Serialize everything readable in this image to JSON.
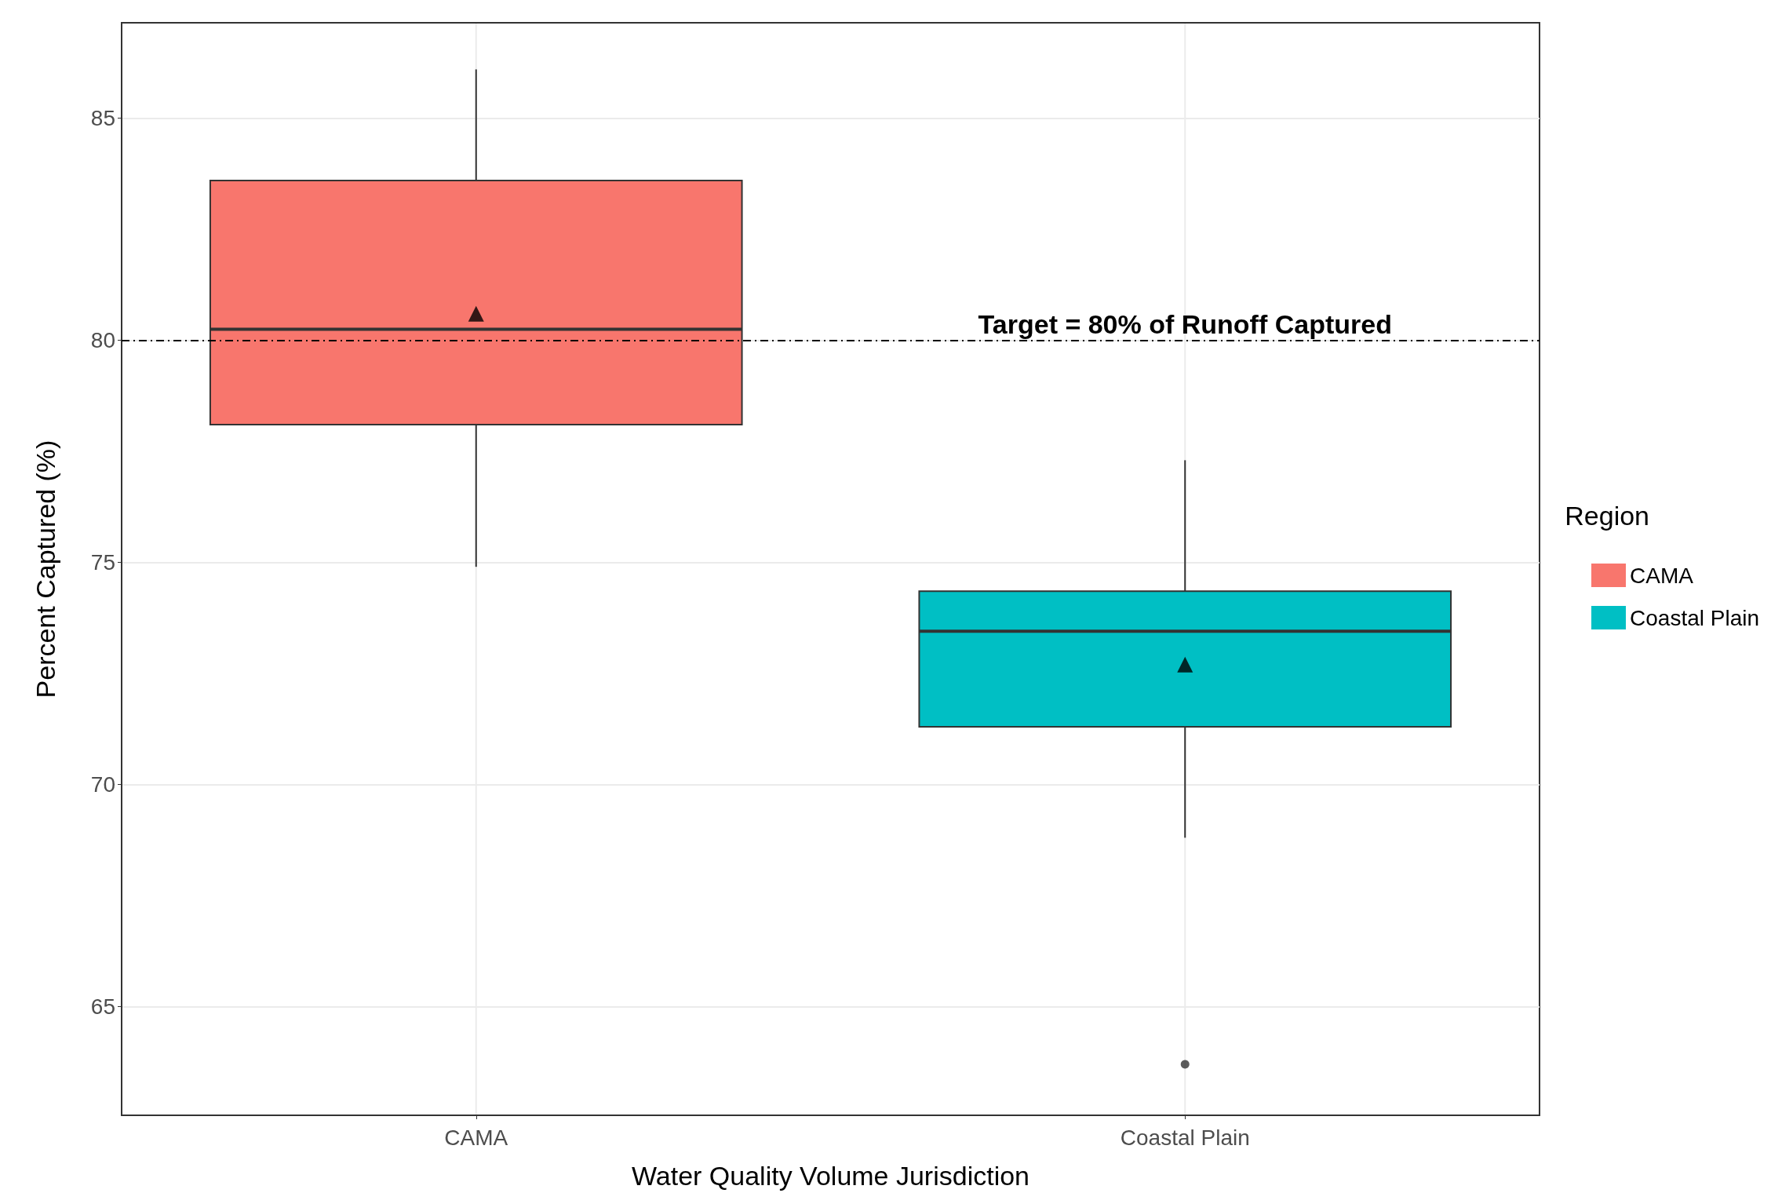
{
  "chart_data": {
    "type": "box",
    "xlabel": "Water Quality Volume Jurisdiction",
    "ylabel": "Percent Captured (%)",
    "legend_title": "Region",
    "categories": [
      "CAMA",
      "Coastal Plain"
    ],
    "series": [
      {
        "name": "CAMA",
        "color": "#f8766d",
        "boxes": [
          {
            "low": 74.9,
            "q1": 78.1,
            "median": 80.25,
            "q3": 83.6,
            "high": 86.1,
            "mean": 80.6
          },
          null
        ]
      },
      {
        "name": "Coastal Plain",
        "color": "#00bfc4",
        "boxes": [
          null,
          {
            "low": 68.8,
            "q1": 71.3,
            "median": 73.45,
            "q3": 74.35,
            "high": 77.3,
            "mean": 72.7,
            "outliers": [
              63.7
            ]
          }
        ]
      }
    ],
    "ylim": [
      62.55,
      87.15
    ],
    "yticks": [
      65,
      70,
      75,
      80,
      85
    ],
    "grid": true,
    "legend": "right",
    "marker": "triangle",
    "ref_lines": [
      {
        "axis": "y",
        "value": 80,
        "label": "Target = 80% of Runoff Captured",
        "color": "#000000",
        "line_style": "dashed"
      }
    ]
  }
}
